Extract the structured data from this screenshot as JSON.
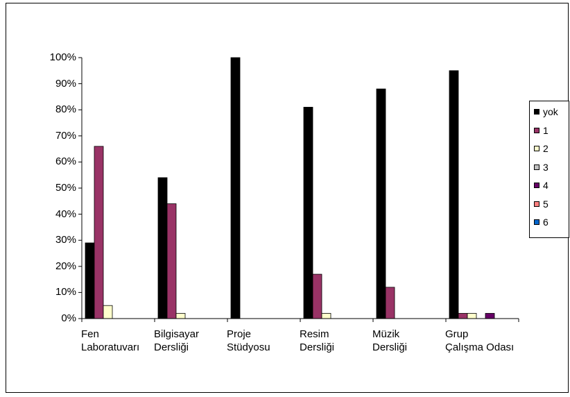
{
  "chart_data": {
    "type": "bar",
    "title": "",
    "xlabel": "",
    "ylabel": "",
    "ylim": [
      0,
      100
    ],
    "yticks": [
      "0%",
      "10%",
      "20%",
      "30%",
      "40%",
      "50%",
      "60%",
      "70%",
      "80%",
      "90%",
      "100%"
    ],
    "grid": false,
    "legend_position": "right",
    "categories": [
      [
        "Fen",
        "Laboratuvarı"
      ],
      [
        "Bilgisayar",
        "Dersliği"
      ],
      [
        "Proje",
        "Stüdyosu"
      ],
      [
        "Resim",
        "Dersliği"
      ],
      [
        "Müzik",
        "Dersliği"
      ],
      [
        "Grup",
        "Çalışma Odası"
      ]
    ],
    "series": [
      {
        "name": "yok",
        "color": "#000000",
        "values": [
          29,
          54,
          100,
          81,
          88,
          95
        ]
      },
      {
        "name": "1",
        "color": "#993366",
        "values": [
          66,
          44,
          0,
          17,
          12,
          2
        ]
      },
      {
        "name": "2",
        "color": "#ffffcc",
        "values": [
          5,
          2,
          0,
          2,
          0,
          2
        ]
      },
      {
        "name": "3",
        "color": "#c0c0c0",
        "values": [
          0,
          0,
          0,
          0,
          0,
          0
        ]
      },
      {
        "name": "4",
        "color": "#660066",
        "values": [
          0,
          0,
          0,
          0,
          0,
          2
        ]
      },
      {
        "name": "5",
        "color": "#ff8080",
        "values": [
          0,
          0,
          0,
          0,
          0,
          0
        ]
      },
      {
        "name": "6",
        "color": "#0066cc",
        "values": [
          0,
          0,
          0,
          0,
          0,
          0
        ]
      }
    ]
  }
}
